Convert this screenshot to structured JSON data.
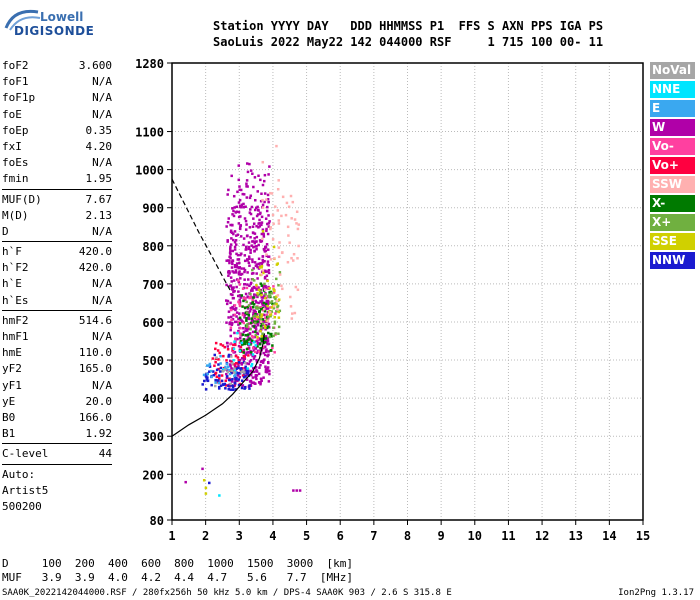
{
  "logo": {
    "line1": "Lowell",
    "line2": "DIGISONDE"
  },
  "header": {
    "line1": "Station YYYY DAY   DDD HHMMSS P1  FFS S AXN PPS IGA PS",
    "line2": "SaoLuis 2022 May22 142 044000 RSF     1 715 100 00- 11"
  },
  "params": [
    [
      {
        "name": "foF2",
        "value": "3.600"
      },
      {
        "name": "foF1",
        "value": "N/A"
      },
      {
        "name": "foF1p",
        "value": "N/A"
      },
      {
        "name": "foE",
        "value": "N/A"
      },
      {
        "name": "foEp",
        "value": "0.35"
      },
      {
        "name": "fxI",
        "value": "4.20"
      },
      {
        "name": "foEs",
        "value": "N/A"
      },
      {
        "name": "fmin",
        "value": "1.95"
      }
    ],
    [
      {
        "name": "MUF(D)",
        "value": "7.67"
      },
      {
        "name": "M(D)",
        "value": "2.13"
      },
      {
        "name": "D",
        "value": "N/A"
      }
    ],
    [
      {
        "name": "h`F",
        "value": "420.0"
      },
      {
        "name": "h`F2",
        "value": "420.0"
      },
      {
        "name": "h`E",
        "value": "N/A"
      },
      {
        "name": "h`Es",
        "value": "N/A"
      }
    ],
    [
      {
        "name": "hmF2",
        "value": "514.6"
      },
      {
        "name": "hmF1",
        "value": "N/A"
      },
      {
        "name": "hmE",
        "value": "110.0"
      },
      {
        "name": "yF2",
        "value": "165.0"
      },
      {
        "name": "yF1",
        "value": "N/A"
      },
      {
        "name": "yE",
        "value": "20.0"
      },
      {
        "name": "B0",
        "value": "166.0"
      },
      {
        "name": "B1",
        "value": "1.92"
      }
    ],
    [
      {
        "name": "C-level",
        "value": "44"
      }
    ],
    [
      {
        "name": "Auto:",
        "value": ""
      },
      {
        "name": "Artist5",
        "value": ""
      },
      {
        "name": "500200",
        "value": ""
      }
    ]
  ],
  "legend": [
    {
      "label": "NoVal",
      "color": "#a6a6a6"
    },
    {
      "label": "NNE",
      "color": "#00e5ff"
    },
    {
      "label": "E",
      "color": "#3aa8f0"
    },
    {
      "label": "W",
      "color": "#b000a8"
    },
    {
      "label": "Vo-",
      "color": "#ff40a0"
    },
    {
      "label": "Vo+",
      "color": "#ff0040"
    },
    {
      "label": "SSW",
      "color": "#ffb0b0"
    },
    {
      "label": "X-",
      "color": "#007a00"
    },
    {
      "label": "X+",
      "color": "#70b040"
    },
    {
      "label": "SSE",
      "color": "#d0d000"
    },
    {
      "label": "NNW",
      "color": "#1a1ad0"
    }
  ],
  "footer": {
    "line1": "D     100  200  400  600  800  1000  1500  3000  [km]",
    "line2": "MUF   3.9  3.9  4.0  4.2  4.4  4.7   5.6   7.7  [MHz]",
    "bottom": "SAA0K_2022142044000.RSF / 280fx256h 50 kHz 5.0 km / DPS-4 SAA0K 903 / 2.6 S 315.8 E",
    "version": "Ion2Png 1.3.17"
  },
  "chart_data": {
    "type": "scatter",
    "xlim": [
      1,
      15
    ],
    "ylim": [
      80,
      1280
    ],
    "x_ticks": [
      1,
      2,
      3,
      4,
      5,
      6,
      7,
      8,
      9,
      10,
      11,
      12,
      13,
      14,
      15
    ],
    "y_ticks": [
      80,
      200,
      300,
      400,
      500,
      600,
      700,
      800,
      900,
      1000,
      1100,
      1280
    ],
    "grid": true,
    "profile_curve": [
      [
        1.0,
        300
      ],
      [
        1.5,
        330
      ],
      [
        2.0,
        355
      ],
      [
        2.5,
        385
      ],
      [
        2.8,
        410
      ],
      [
        3.1,
        440
      ],
      [
        3.4,
        470
      ],
      [
        3.6,
        505
      ],
      [
        3.7,
        540
      ],
      [
        3.75,
        570
      ]
    ],
    "dashed_curve": [
      [
        1.0,
        975
      ],
      [
        1.4,
        905
      ],
      [
        1.8,
        835
      ],
      [
        2.2,
        770
      ],
      [
        2.5,
        720
      ],
      [
        2.75,
        680
      ]
    ],
    "clusters": [
      {
        "color": "#b000a8",
        "count": 700,
        "x": [
          2.6,
          3.9
        ],
        "y": [
          430,
          1050
        ]
      },
      {
        "color": "#ff40a0",
        "count": 70,
        "x": [
          2.7,
          4.1
        ],
        "y": [
          520,
          750
        ]
      },
      {
        "color": "#ff0040",
        "count": 60,
        "x": [
          2.2,
          3.3
        ],
        "y": [
          430,
          560
        ]
      },
      {
        "color": "#1a1ad0",
        "count": 90,
        "x": [
          1.9,
          3.3
        ],
        "y": [
          420,
          520
        ]
      },
      {
        "color": "#007a00",
        "count": 90,
        "x": [
          3.0,
          4.0
        ],
        "y": [
          520,
          720
        ]
      },
      {
        "color": "#70b040",
        "count": 60,
        "x": [
          3.2,
          4.2
        ],
        "y": [
          560,
          760
        ]
      },
      {
        "color": "#d0d000",
        "count": 40,
        "x": [
          3.5,
          4.2
        ],
        "y": [
          560,
          860
        ]
      },
      {
        "color": "#ffb0b0",
        "count": 70,
        "x": [
          3.6,
          4.8
        ],
        "y": [
          600,
          1100
        ]
      },
      {
        "color": "#3aa8f0",
        "count": 20,
        "x": [
          1.9,
          3.0
        ],
        "y": [
          440,
          520
        ]
      },
      {
        "color": "#00e5ff",
        "count": 15,
        "x": [
          2.5,
          3.5
        ],
        "y": [
          470,
          640
        ]
      },
      {
        "color": "#a6a6a6",
        "count": 15,
        "x": [
          2.2,
          3.2
        ],
        "y": [
          430,
          520
        ]
      }
    ],
    "points": [
      {
        "x": 1.9,
        "y": 215,
        "color": "#b000a8"
      },
      {
        "x": 1.4,
        "y": 180,
        "color": "#b000a8"
      },
      {
        "x": 1.95,
        "y": 185,
        "color": "#d0d000"
      },
      {
        "x": 2.0,
        "y": 165,
        "color": "#d0d000"
      },
      {
        "x": 2.1,
        "y": 178,
        "color": "#1a1ad0"
      },
      {
        "x": 2.0,
        "y": 150,
        "color": "#d0d000"
      },
      {
        "x": 2.4,
        "y": 145,
        "color": "#00e5ff"
      },
      {
        "x": 4.6,
        "y": 158,
        "color": "#b000a8"
      },
      {
        "x": 4.7,
        "y": 158,
        "color": "#b000a8"
      },
      {
        "x": 4.8,
        "y": 158,
        "color": "#b000a8"
      }
    ]
  }
}
